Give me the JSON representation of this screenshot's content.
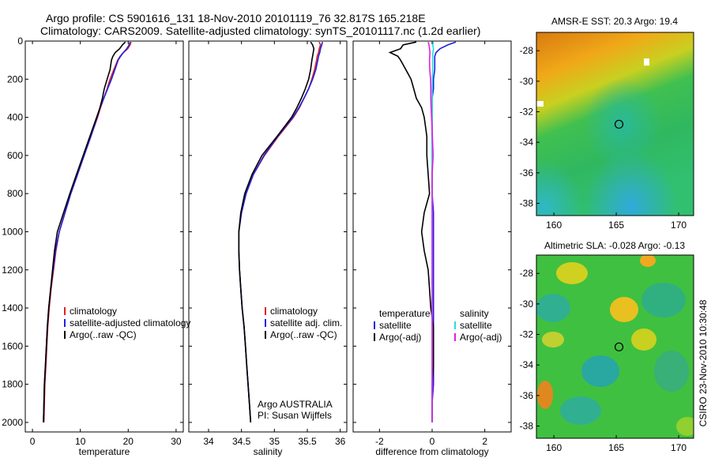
{
  "title_line1": "Argo profile: CS 5901616_131 18-Nov-2010 20101119_76 32.817S 165.218E",
  "title_line2": "Climatology: CARS2009. Satellite-adjusted climatology: synTS_20101117.nc (1.2d earlier)",
  "credit": "CSIRO 23-Nov-2010 10:30:48",
  "colors": {
    "climatology": "#e02020",
    "satellite": "#2020e0",
    "argo": "#000000",
    "argo_sal_diff": "#e020e0",
    "sal_sat_diff": "#20e0e0"
  },
  "chart_data": [
    {
      "type": "line",
      "xlabel": "temperature",
      "ylim": [
        2050,
        0
      ],
      "xlim": [
        -1.5,
        31.5
      ],
      "xticks": [
        "0",
        "10",
        "20",
        "30"
      ],
      "yticks": [
        "0",
        "200",
        "400",
        "600",
        "800",
        "1000",
        "1200",
        "1400",
        "1600",
        "1800",
        "2000"
      ],
      "legend": [
        "climatology",
        "satellite-adjusted climatology",
        "Argo(..raw -QC)"
      ],
      "depth": [
        5,
        20,
        40,
        60,
        80,
        100,
        150,
        200,
        250,
        300,
        350,
        400,
        500,
        600,
        700,
        800,
        900,
        1000,
        1100,
        1200,
        1300,
        1400,
        1500,
        1600,
        1700,
        1800,
        1900,
        2000
      ],
      "series": [
        {
          "name": "climatology",
          "values": [
            20.6,
            20.4,
            19.9,
            19.0,
            18.3,
            17.8,
            17.0,
            16.2,
            15.6,
            14.9,
            14.2,
            13.6,
            12.2,
            10.8,
            9.4,
            8.0,
            6.8,
            5.6,
            4.9,
            4.4,
            3.9,
            3.5,
            3.2,
            3.0,
            2.8,
            2.6,
            2.5,
            2.4
          ]
        },
        {
          "name": "satellite-adjusted climatology",
          "values": [
            20.4,
            20.2,
            19.7,
            19.0,
            18.4,
            17.9,
            17.2,
            16.5,
            15.7,
            14.9,
            14.1,
            13.5,
            12.2,
            10.8,
            9.4,
            8.0,
            6.8,
            5.6,
            4.8,
            4.3,
            3.8,
            3.4,
            3.1,
            2.9,
            2.7,
            2.5,
            2.4,
            2.3
          ]
        },
        {
          "name": "Argo(..raw -QC)",
          "values": [
            19.4,
            18.8,
            18.2,
            17.3,
            16.8,
            16.5,
            16.2,
            15.6,
            15.0,
            14.6,
            14.1,
            13.4,
            12.0,
            10.6,
            9.2,
            7.8,
            6.5,
            5.2,
            4.6,
            4.2,
            3.8,
            3.4,
            3.1,
            2.9,
            2.7,
            2.5,
            2.4,
            2.3
          ]
        }
      ]
    },
    {
      "type": "line",
      "xlabel": "salinity",
      "ylim": [
        2050,
        0
      ],
      "xlim": [
        33.7,
        36.1
      ],
      "xticks": [
        "34",
        "34.5",
        "35",
        "35.5",
        "36"
      ],
      "legend": [
        "climatology",
        "satellite adj. clim.",
        "Argo(..raw -QC)"
      ],
      "annotation": [
        "Argo AUSTRALIA",
        "PI: Susan Wijffels"
      ],
      "depth": [
        5,
        20,
        40,
        60,
        80,
        100,
        150,
        200,
        250,
        300,
        350,
        400,
        500,
        600,
        700,
        800,
        900,
        1000,
        1100,
        1200,
        1300,
        1400,
        1500,
        1600,
        1700,
        1800,
        1900,
        2000
      ],
      "series": [
        {
          "name": "climatology",
          "values": [
            35.68,
            35.7,
            35.68,
            35.67,
            35.65,
            35.64,
            35.61,
            35.57,
            35.52,
            35.45,
            35.38,
            35.29,
            35.06,
            34.85,
            34.68,
            34.57,
            34.5,
            34.46,
            34.46,
            34.47,
            34.49,
            34.51,
            34.54,
            34.56,
            34.58,
            34.6,
            34.62,
            34.64
          ]
        },
        {
          "name": "satellite adj. clim.",
          "values": [
            35.73,
            35.72,
            35.7,
            35.69,
            35.67,
            35.66,
            35.63,
            35.58,
            35.52,
            35.45,
            35.37,
            35.28,
            35.05,
            34.84,
            34.68,
            34.57,
            34.5,
            34.46,
            34.46,
            34.47,
            34.49,
            34.51,
            34.54,
            34.56,
            34.58,
            34.6,
            34.62,
            34.64
          ]
        },
        {
          "name": "Argo(..raw -QC)",
          "values": [
            35.55,
            35.58,
            35.6,
            35.59,
            35.58,
            35.57,
            35.55,
            35.52,
            35.47,
            35.41,
            35.34,
            35.26,
            35.04,
            34.81,
            34.66,
            34.55,
            34.49,
            34.46,
            34.46,
            34.47,
            34.49,
            34.51,
            34.54,
            34.56,
            34.58,
            34.6,
            34.62,
            34.64
          ]
        }
      ]
    },
    {
      "type": "line",
      "xlabel": "difference from climatology",
      "ylim": [
        2050,
        0
      ],
      "xlim": [
        -3,
        3
      ],
      "xticks": [
        "-2",
        "0",
        "2"
      ],
      "legend_headers": [
        "temperature",
        "salinity"
      ],
      "legend": [
        "satellite",
        "Argo(-adj)",
        "satellite",
        "Argo(-adj)"
      ],
      "depth": [
        5,
        20,
        40,
        60,
        80,
        100,
        150,
        200,
        250,
        300,
        350,
        400,
        500,
        600,
        700,
        800,
        900,
        1000,
        1100,
        1200,
        1300,
        1400,
        1500,
        1600,
        1700,
        1800,
        1900,
        2000
      ],
      "series": [
        {
          "name": "temperature satellite",
          "values": [
            0.9,
            0.6,
            0.3,
            0.15,
            0.1,
            0.1,
            0.1,
            0.05,
            0.05,
            0.0,
            0.0,
            0.0,
            0.0,
            0.0,
            0.0,
            0.0,
            0.05,
            0.05,
            0.05,
            0.05,
            0.05,
            0.05,
            0.05,
            0.05,
            0.05,
            0.05,
            0.0,
            0.0
          ]
        },
        {
          "name": "temperature Argo(-adj)",
          "values": [
            -0.6,
            -1.1,
            -1.2,
            -1.6,
            -1.3,
            -1.2,
            -1.0,
            -0.8,
            -0.7,
            -0.6,
            -0.4,
            -0.3,
            -0.2,
            -0.2,
            -0.15,
            -0.1,
            -0.3,
            -0.4,
            -0.3,
            -0.15,
            -0.1,
            -0.05,
            0.05,
            0.05,
            0.05,
            0.0,
            0.0,
            0.0
          ]
        },
        {
          "name": "salinity satellite",
          "values": [
            0.05,
            0.02,
            0.05,
            0.03,
            0.02,
            0.02,
            0.02,
            0.01,
            0.0,
            0.0,
            0.0,
            0.0,
            0.0,
            0.0,
            0.0,
            0.0,
            0.0,
            0.0,
            0.0,
            0.0,
            0.0,
            0.0,
            0.0,
            0.0,
            0.0,
            0.0,
            0.0,
            0.0
          ]
        },
        {
          "name": "salinity Argo(-adj)",
          "values": [
            -0.15,
            -0.12,
            -0.1,
            -0.08,
            -0.09,
            -0.1,
            -0.09,
            -0.06,
            -0.05,
            -0.05,
            -0.04,
            -0.02,
            0.01,
            0.04,
            0.0,
            0.0,
            0.0,
            0.0,
            0.0,
            0.0,
            0.0,
            0.0,
            0.0,
            0.0,
            0.0,
            0.0,
            0.0,
            0.0
          ]
        }
      ]
    },
    {
      "type": "heatmap",
      "title": "AMSR-E SST: 20.3 Argo: 19.4",
      "xticks": [
        "160",
        "165",
        "170"
      ],
      "yticks": [
        "-28",
        "-30",
        "-32",
        "-34",
        "-36",
        "-38"
      ],
      "xlim": [
        158.6,
        171.2
      ],
      "ylim": [
        -38.8,
        -26.8
      ],
      "marker": {
        "lon": 165.218,
        "lat": -32.817
      }
    },
    {
      "type": "heatmap",
      "title": "Altimetric SLA: -0.028 Argo: -0.13",
      "xticks": [
        "160",
        "165",
        "170"
      ],
      "yticks": [
        "-28",
        "-30",
        "-32",
        "-34",
        "-36",
        "-38"
      ],
      "xlim": [
        158.6,
        171.2
      ],
      "ylim": [
        -38.8,
        -26.8
      ],
      "marker": {
        "lon": 165.218,
        "lat": -32.817
      }
    }
  ]
}
